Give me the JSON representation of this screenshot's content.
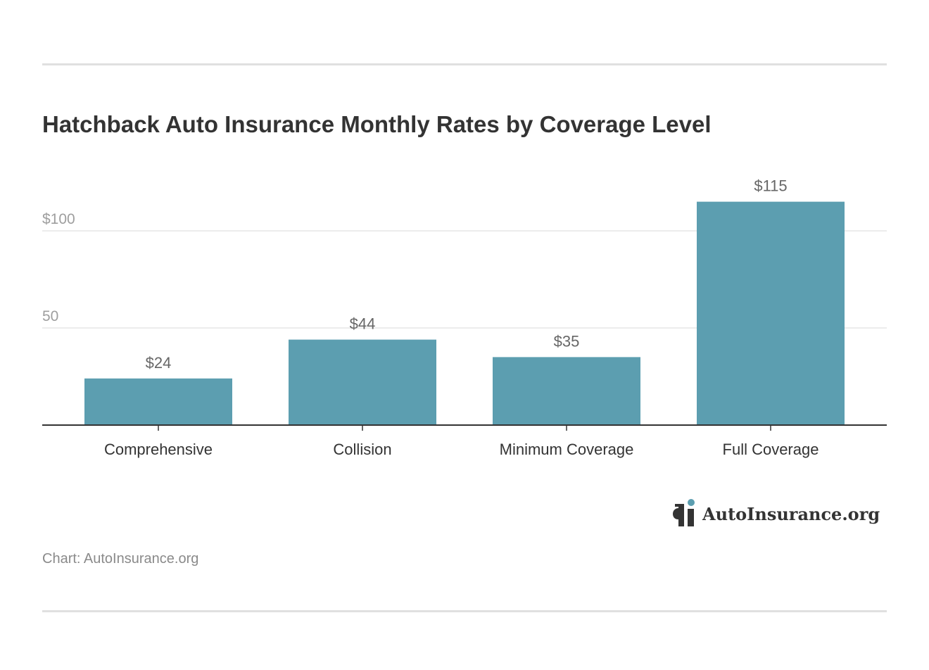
{
  "chart_data": {
    "type": "bar",
    "title": "Hatchback Auto Insurance Monthly Rates by Coverage Level",
    "categories": [
      "Comprehensive",
      "Collision",
      "Minimum Coverage",
      "Full Coverage"
    ],
    "values": [
      24,
      44,
      35,
      115
    ],
    "value_labels": [
      "$24",
      "$44",
      "$35",
      "$115"
    ],
    "yticks": [
      {
        "value": 50,
        "label": "50"
      },
      {
        "value": 100,
        "label": "$100"
      }
    ],
    "ylim": [
      0,
      130
    ],
    "xlabel": "",
    "ylabel": "",
    "grid": true,
    "legend": "none",
    "colors": {
      "bar": "#5c9eb0",
      "grid": "#e6e6e6",
      "axis": "#333333",
      "tick_label": "#9e9e9e",
      "category_label": "#333333",
      "value_label": "#666666"
    }
  },
  "source": "Chart: AutoInsurance.org",
  "logo": {
    "text": "AutoInsurance.org",
    "icon": "autoinsurance-logo-icon",
    "accent": "#5c9eb0"
  }
}
